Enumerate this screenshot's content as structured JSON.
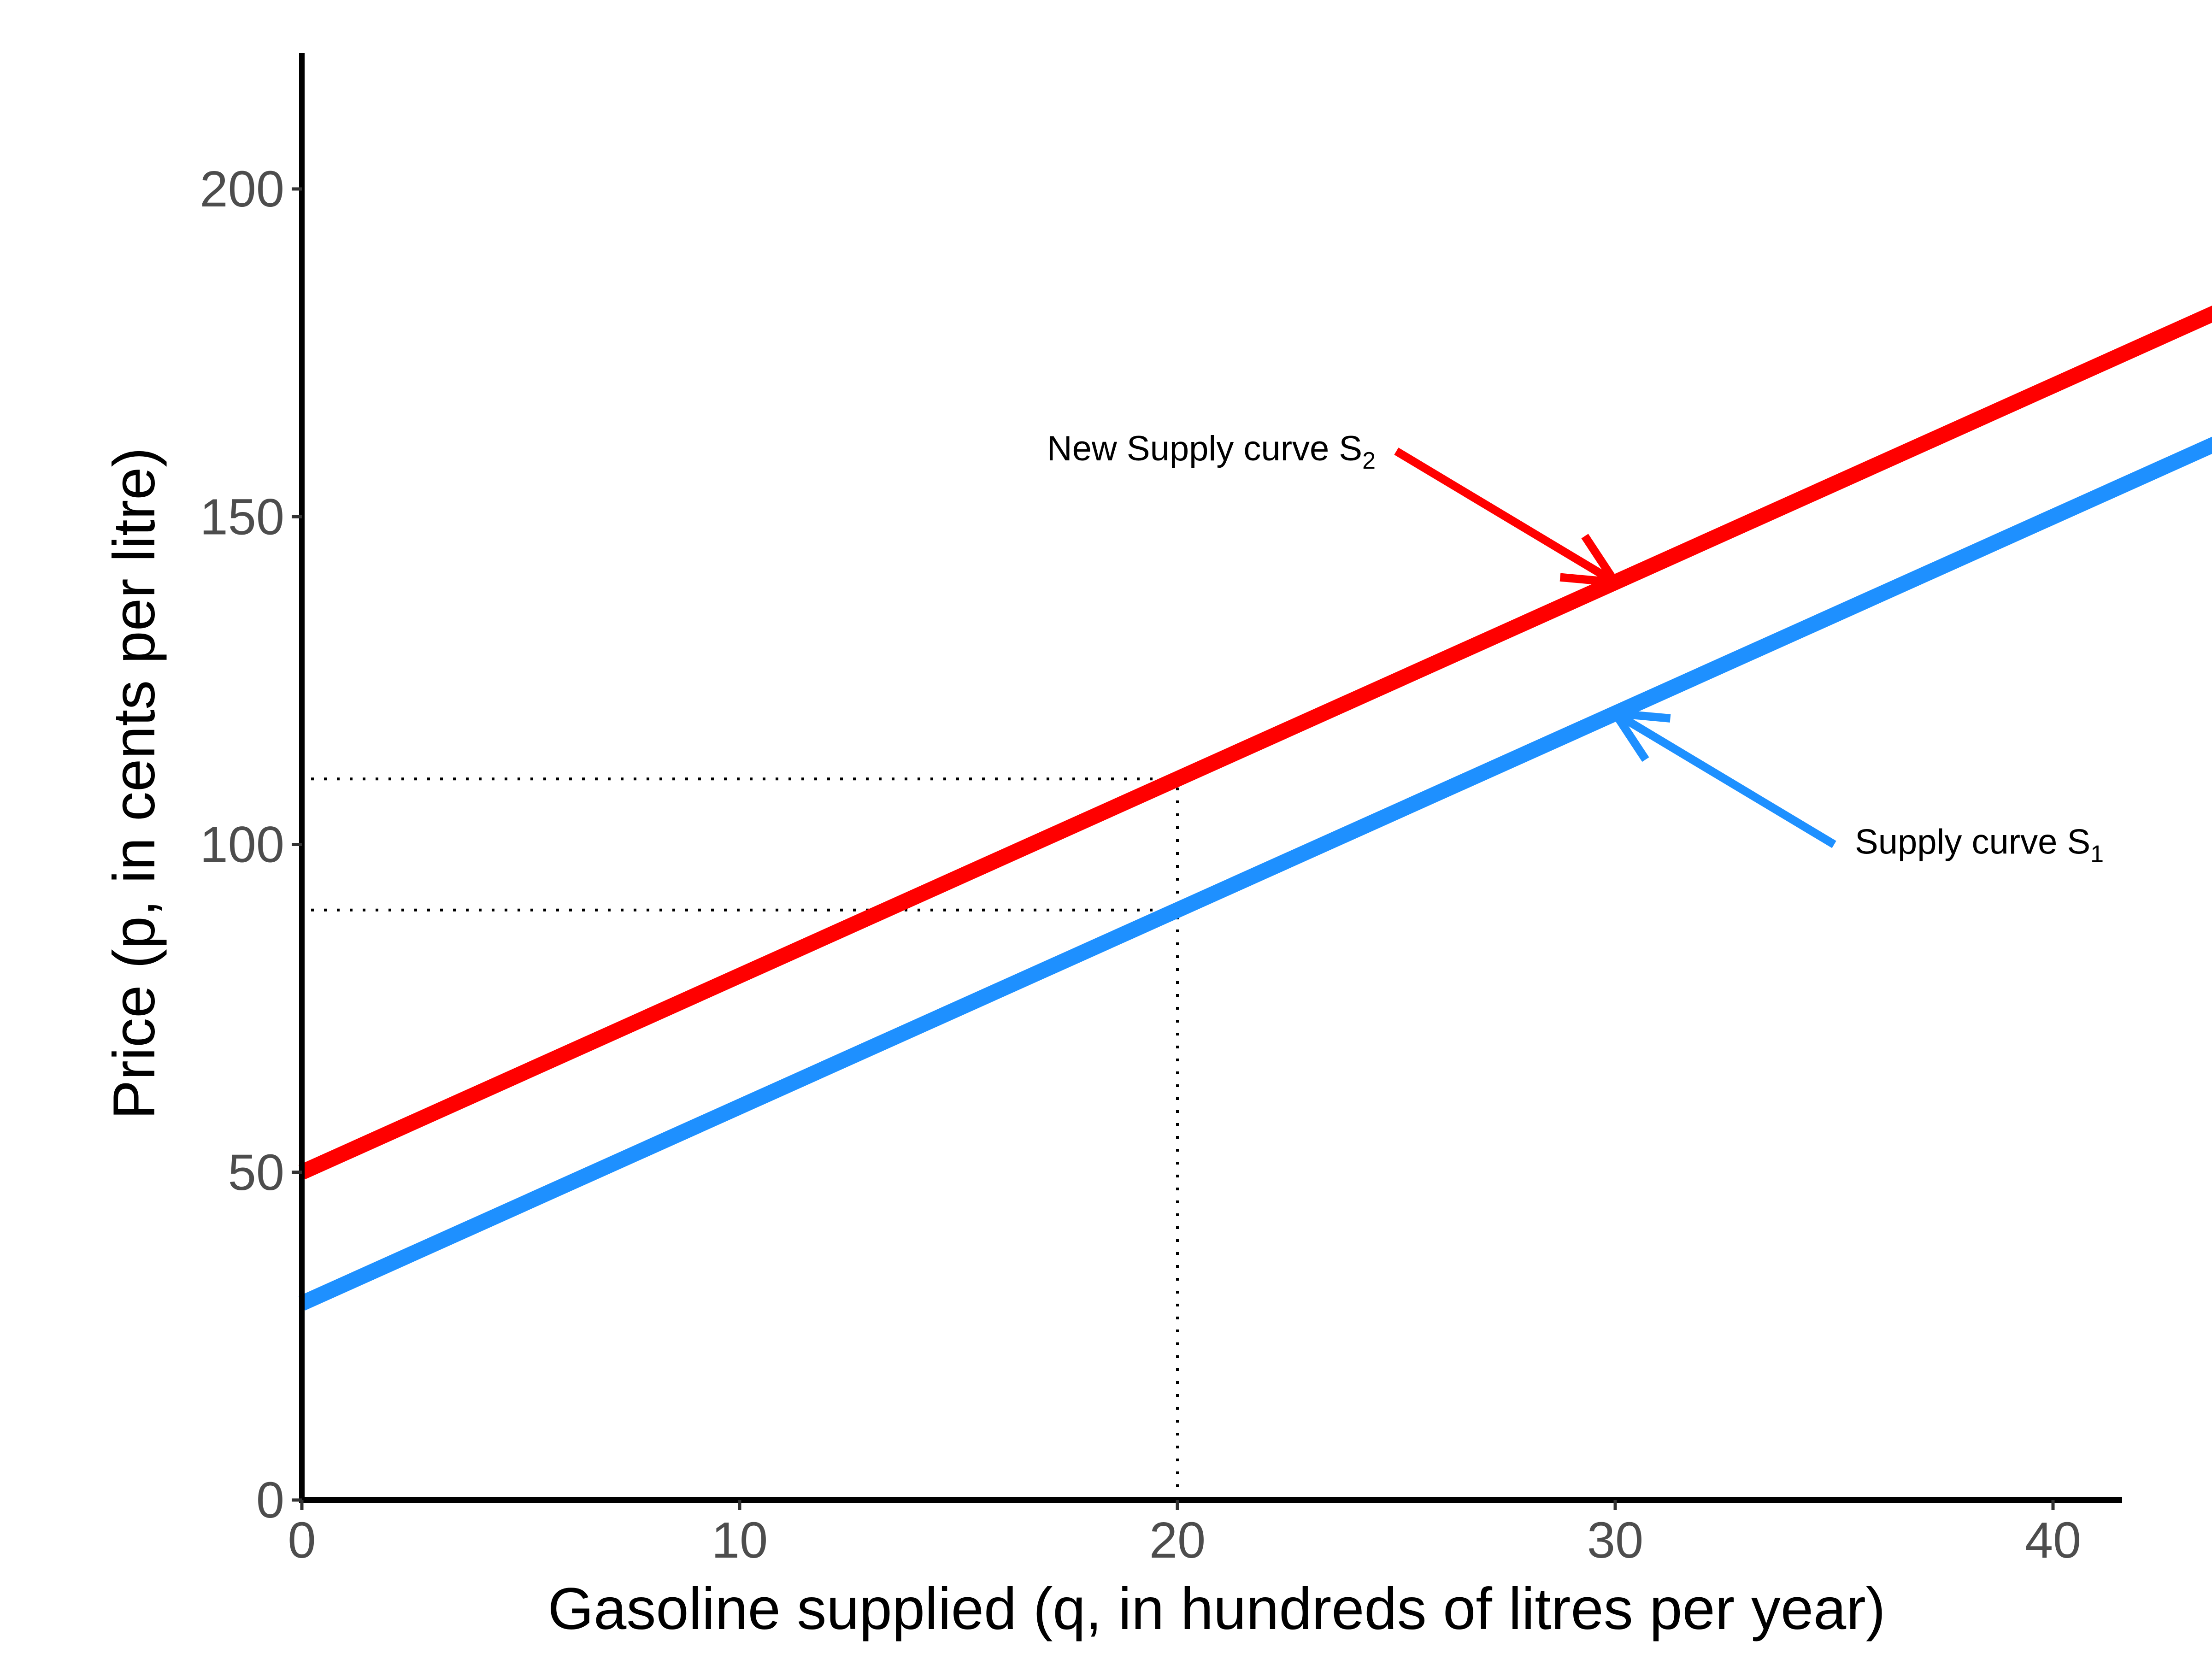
{
  "chart_data": {
    "type": "line",
    "title": "",
    "xlabel": "Gasoline supplied (q, in hundreds of litres per year)",
    "ylabel": "Price (p, in cents per litre)",
    "xlim": [
      0,
      45
    ],
    "ylim": [
      0,
      220
    ],
    "x_ticks": [
      0,
      10,
      20,
      30,
      40
    ],
    "y_ticks": [
      0,
      50,
      100,
      150,
      200
    ],
    "grid": false,
    "legend": "none",
    "series": [
      {
        "name": "Supply curve S1",
        "color": "#1E90FF",
        "x": [
          0,
          45
        ],
        "y": [
          30,
          165
        ]
      },
      {
        "name": "New Supply curve S2",
        "color": "#FF0000",
        "x": [
          0,
          45
        ],
        "y": [
          50,
          185
        ]
      }
    ],
    "reference_lines": {
      "vertical": [
        {
          "x": 20,
          "y_to": 110
        }
      ],
      "horizontal": [
        {
          "y": 110,
          "x_to": 20
        },
        {
          "y": 90,
          "x_to": 20
        }
      ]
    },
    "annotations": [
      {
        "series": "New Supply curve S2",
        "text": "New Supply curve S",
        "subscript": "2",
        "label_at": [
          25,
          160
        ],
        "arrow_to": [
          30,
          140
        ],
        "color": "#FF0000"
      },
      {
        "series": "Supply curve S1",
        "text": "Supply curve S",
        "subscript": "1",
        "label_at": [
          35,
          100
        ],
        "arrow_to": [
          30,
          120
        ],
        "color": "#1E90FF"
      }
    ]
  }
}
